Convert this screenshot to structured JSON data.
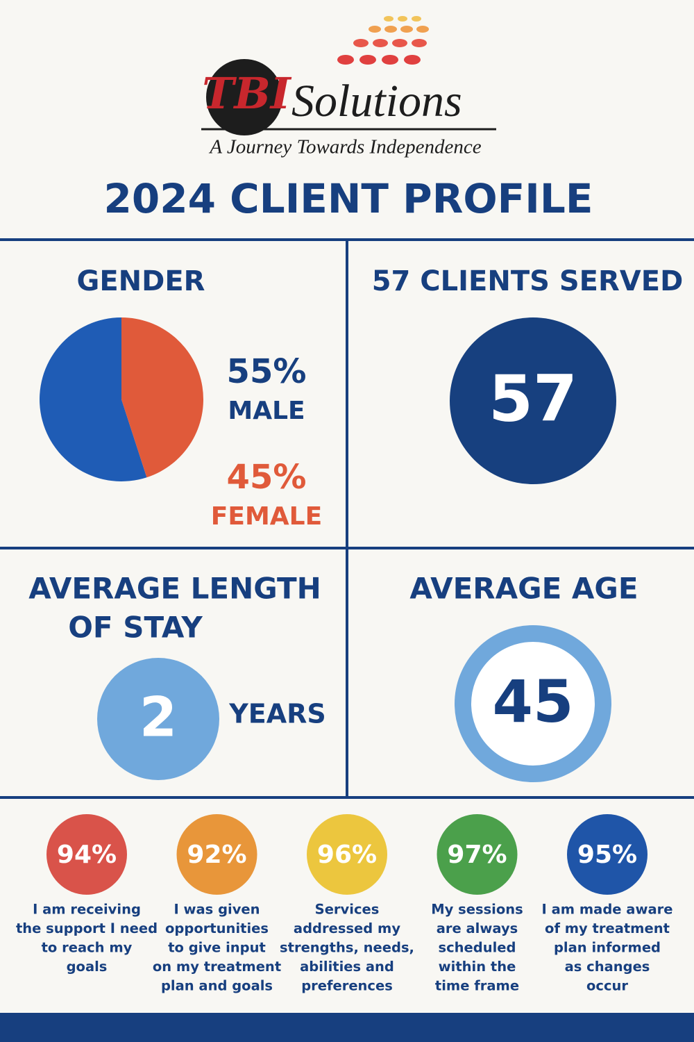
{
  "logo": {
    "mark": "TBI",
    "name": "Solutions",
    "tagline": "A Journey Towards Independence"
  },
  "title": "2024 CLIENT PROFILE",
  "gender": {
    "title": "GENDER",
    "type": "pie",
    "slices": [
      {
        "name": "MALE",
        "value": 55,
        "value_label": "55%",
        "color": "#1f5cb5",
        "label_color": "#173f7f"
      },
      {
        "name": "FEMALE",
        "value": 45,
        "value_label": "45%",
        "color": "#e05a3a",
        "label_color": "#e05a3a"
      }
    ]
  },
  "clients": {
    "title": "57 CLIENTS SERVED",
    "number": "57"
  },
  "length_of_stay": {
    "title": [
      "AVERAGE LENGTH",
      "OF STAY"
    ],
    "number": "2",
    "unit": "YEARS"
  },
  "average_age": {
    "title": "AVERAGE AGE",
    "number": "45"
  },
  "survey": [
    {
      "value": "94%",
      "color": "#d9534a",
      "lines": [
        "I am receiving",
        "the support I need",
        "to reach my",
        "goals"
      ]
    },
    {
      "value": "92%",
      "color": "#e8963a",
      "lines": [
        "I was given",
        "opportunities",
        "to give input",
        "on my treatment",
        "plan and goals"
      ]
    },
    {
      "value": "96%",
      "color": "#ecc63e",
      "lines": [
        "Services",
        "addressed my",
        "strengths, needs,",
        "abilities and",
        "preferences"
      ]
    },
    {
      "value": "97%",
      "color": "#4ba04b",
      "lines": [
        "My sessions",
        "are always",
        "scheduled",
        "within the",
        "time frame"
      ]
    },
    {
      "value": "95%",
      "color": "#1f55a8",
      "lines": [
        "I am made aware",
        "of my treatment",
        "plan  informed",
        "as changes",
        "occur"
      ]
    }
  ]
}
